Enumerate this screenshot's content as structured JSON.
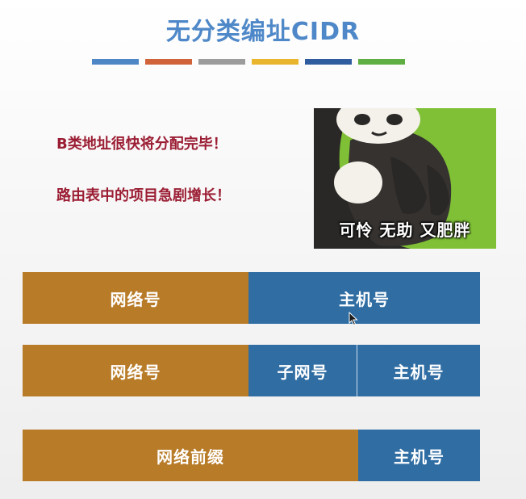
{
  "title": "无分类编址CIDR",
  "stripe_colors": [
    "#4f86c6",
    "#d1633a",
    "#9c9c9c",
    "#e8b52d",
    "#2f5c9e",
    "#5fae44"
  ],
  "bullets": [
    "B类地址很快将分配完毕！",
    "路由表中的项目急剧增长！"
  ],
  "meme": {
    "caption": "可怜 无助 又肥胖"
  },
  "rows": [
    {
      "segments": [
        "网络号",
        "主机号"
      ]
    },
    {
      "segments": [
        "网络号",
        "子网号",
        "主机号"
      ]
    },
    {
      "segments": [
        "网络前缀",
        "主机号"
      ]
    }
  ],
  "colors": {
    "orange": "#b87b28",
    "blue": "#2f6da3",
    "title": "#4f88c8",
    "bullet": "#9b1d33"
  }
}
